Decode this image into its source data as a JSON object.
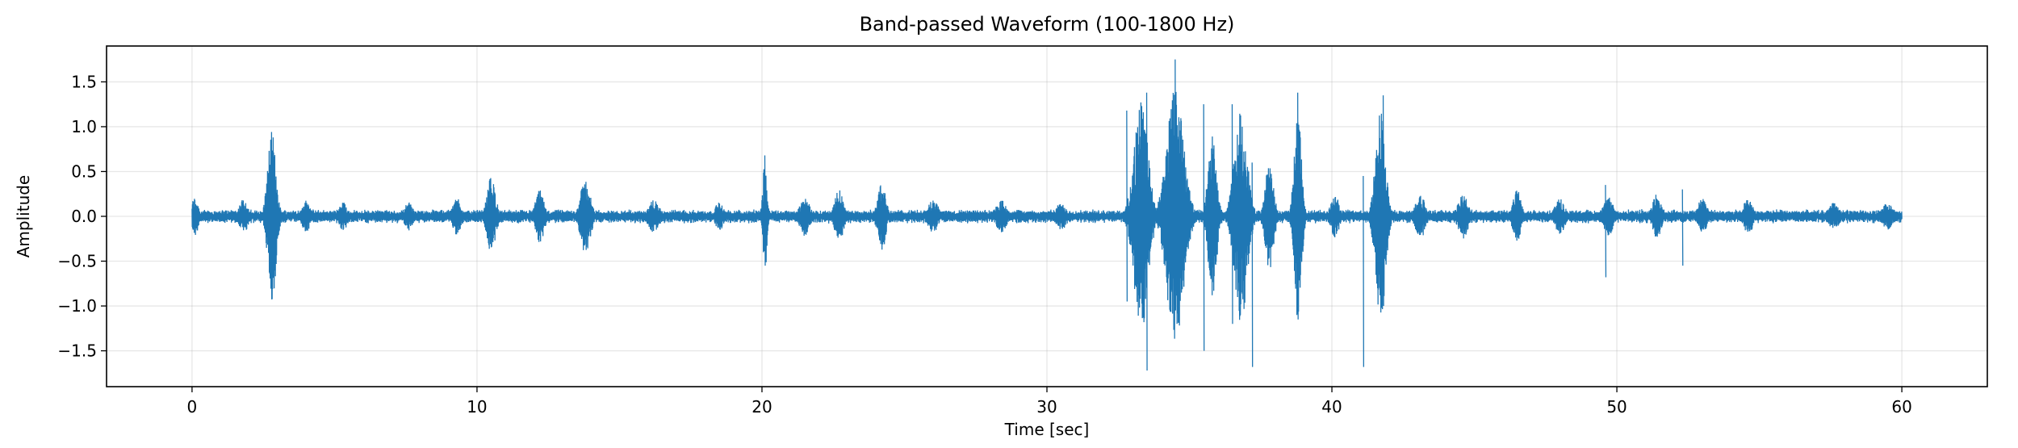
{
  "chart_data": {
    "type": "line",
    "title": "Band-passed Waveform (100-1800 Hz)",
    "xlabel": "Time [sec]",
    "ylabel": "Amplitude",
    "xlim": [
      -3,
      63
    ],
    "ylim": [
      -1.9,
      1.9
    ],
    "xticks": [
      0,
      10,
      20,
      30,
      40,
      50,
      60
    ],
    "xtick_labels": [
      "0",
      "10",
      "20",
      "30",
      "40",
      "50",
      "60"
    ],
    "yticks": [
      -1.5,
      -1.0,
      -0.5,
      0.0,
      0.5,
      1.0,
      1.5
    ],
    "ytick_labels": [
      "−1.5",
      "−1.0",
      "−0.5",
      "0.0",
      "0.5",
      "1.0",
      "1.5"
    ],
    "grid": true,
    "legend": "none",
    "series": [
      {
        "color": "#1f77b4",
        "duration": [
          0,
          60
        ],
        "baseline_amplitude": 0.08,
        "bursts": [
          {
            "t": 0.1,
            "width": 0.25,
            "amp": 0.22
          },
          {
            "t": 1.8,
            "width": 0.3,
            "amp": 0.2
          },
          {
            "t": 2.8,
            "width": 0.3,
            "amp": 0.95
          },
          {
            "t": 4.0,
            "width": 0.3,
            "amp": 0.18
          },
          {
            "t": 5.3,
            "width": 0.3,
            "amp": 0.16
          },
          {
            "t": 7.6,
            "width": 0.3,
            "amp": 0.16
          },
          {
            "t": 9.3,
            "width": 0.3,
            "amp": 0.22
          },
          {
            "t": 10.5,
            "width": 0.3,
            "amp": 0.45
          },
          {
            "t": 12.2,
            "width": 0.3,
            "amp": 0.3
          },
          {
            "t": 13.8,
            "width": 0.35,
            "amp": 0.42
          },
          {
            "t": 16.2,
            "width": 0.4,
            "amp": 0.18
          },
          {
            "t": 18.5,
            "width": 0.3,
            "amp": 0.16
          },
          {
            "t": 20.1,
            "width": 0.15,
            "amp": 0.6
          },
          {
            "t": 21.5,
            "width": 0.35,
            "amp": 0.22
          },
          {
            "t": 22.7,
            "width": 0.3,
            "amp": 0.3
          },
          {
            "t": 24.2,
            "width": 0.3,
            "amp": 0.38
          },
          {
            "t": 26.0,
            "width": 0.4,
            "amp": 0.18
          },
          {
            "t": 28.4,
            "width": 0.4,
            "amp": 0.18
          },
          {
            "t": 30.5,
            "width": 0.4,
            "amp": 0.15
          },
          {
            "t": 33.3,
            "width": 0.5,
            "amp": 1.3
          },
          {
            "t": 34.5,
            "width": 0.6,
            "amp": 1.45
          },
          {
            "t": 35.8,
            "width": 0.3,
            "amp": 0.9
          },
          {
            "t": 36.8,
            "width": 0.45,
            "amp": 1.2
          },
          {
            "t": 37.8,
            "width": 0.3,
            "amp": 0.6
          },
          {
            "t": 38.8,
            "width": 0.25,
            "amp": 1.2
          },
          {
            "t": 40.1,
            "width": 0.3,
            "amp": 0.25
          },
          {
            "t": 41.7,
            "width": 0.35,
            "amp": 1.2
          },
          {
            "t": 43.1,
            "width": 0.35,
            "amp": 0.25
          },
          {
            "t": 44.6,
            "width": 0.35,
            "amp": 0.25
          },
          {
            "t": 46.5,
            "width": 0.3,
            "amp": 0.3
          },
          {
            "t": 48.0,
            "width": 0.35,
            "amp": 0.2
          },
          {
            "t": 49.7,
            "width": 0.35,
            "amp": 0.22
          },
          {
            "t": 51.4,
            "width": 0.3,
            "amp": 0.25
          },
          {
            "t": 53.0,
            "width": 0.35,
            "amp": 0.2
          },
          {
            "t": 54.6,
            "width": 0.35,
            "amp": 0.2
          },
          {
            "t": 57.6,
            "width": 0.4,
            "amp": 0.15
          },
          {
            "t": 59.5,
            "width": 0.4,
            "amp": 0.15
          }
        ],
        "spikes": [
          {
            "t": 20.1,
            "max": 0.68,
            "min": -0.55
          },
          {
            "t": 32.8,
            "max": 1.18,
            "min": -0.95
          },
          {
            "t": 33.5,
            "max": 1.38,
            "min": -1.72
          },
          {
            "t": 34.5,
            "max": 1.75,
            "min": -1.05
          },
          {
            "t": 35.5,
            "max": 1.25,
            "min": -1.5
          },
          {
            "t": 36.5,
            "max": 1.25,
            "min": -1.2
          },
          {
            "t": 37.2,
            "max": 0.6,
            "min": -1.68
          },
          {
            "t": 38.8,
            "max": 1.38,
            "min": -1.15
          },
          {
            "t": 41.1,
            "max": 0.45,
            "min": -1.68
          },
          {
            "t": 41.8,
            "max": 1.35,
            "min": -1.0
          },
          {
            "t": 49.6,
            "max": 0.35,
            "min": -0.68
          },
          {
            "t": 52.3,
            "max": 0.3,
            "min": -0.55
          }
        ]
      }
    ]
  }
}
